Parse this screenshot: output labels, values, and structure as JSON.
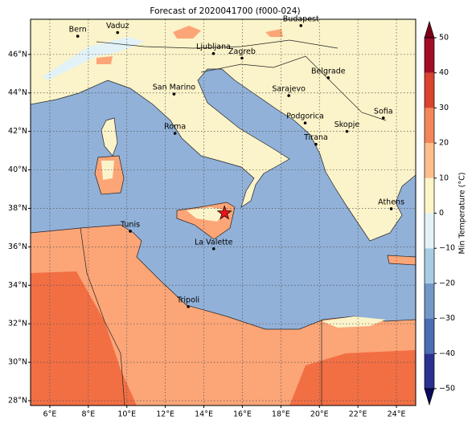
{
  "title": "Forecast of 2020041700 (f000-024)",
  "map": {
    "xlim": [
      5,
      25
    ],
    "ylim": [
      27.75,
      47.83
    ],
    "xticks": [
      {
        "value": 6,
        "label": "6°E"
      },
      {
        "value": 8,
        "label": "8°E"
      },
      {
        "value": 10,
        "label": "10°E"
      },
      {
        "value": 12,
        "label": "12°E"
      },
      {
        "value": 14,
        "label": "14°E"
      },
      {
        "value": 16,
        "label": "16°E"
      },
      {
        "value": 18,
        "label": "18°E"
      },
      {
        "value": 20,
        "label": "20°E"
      },
      {
        "value": 22,
        "label": "22°E"
      },
      {
        "value": 24,
        "label": "24°E"
      }
    ],
    "yticks": [
      {
        "value": 28,
        "label": "28°N"
      },
      {
        "value": 30,
        "label": "30°N"
      },
      {
        "value": 32,
        "label": "32°N"
      },
      {
        "value": 34,
        "label": "34°N"
      },
      {
        "value": 36,
        "label": "36°N"
      },
      {
        "value": 38,
        "label": "38°N"
      },
      {
        "value": 40,
        "label": "40°N"
      },
      {
        "value": 42,
        "label": "42°N"
      },
      {
        "value": 44,
        "label": "44°N"
      },
      {
        "value": 46,
        "label": "46°N"
      }
    ],
    "cities": [
      {
        "name": "Bern",
        "lon": 7.45,
        "lat": 46.95
      },
      {
        "name": "Vaduz",
        "lon": 9.52,
        "lat": 47.14
      },
      {
        "name": "Budapest",
        "lon": 19.04,
        "lat": 47.5
      },
      {
        "name": "Ljubljana",
        "lon": 14.5,
        "lat": 46.05
      },
      {
        "name": "Zagreb",
        "lon": 15.98,
        "lat": 45.81
      },
      {
        "name": "Belgrade",
        "lon": 20.46,
        "lat": 44.79
      },
      {
        "name": "San Marino",
        "lon": 12.45,
        "lat": 43.94
      },
      {
        "name": "Sarajevo",
        "lon": 18.41,
        "lat": 43.86
      },
      {
        "name": "Sofia",
        "lon": 23.32,
        "lat": 42.7
      },
      {
        "name": "Roma",
        "lon": 12.5,
        "lat": 41.9
      },
      {
        "name": "Podgorica",
        "lon": 19.26,
        "lat": 42.44
      },
      {
        "name": "Skopje",
        "lon": 21.43,
        "lat": 42.0
      },
      {
        "name": "Tirana",
        "lon": 19.82,
        "lat": 41.33
      },
      {
        "name": "Athens",
        "lon": 23.73,
        "lat": 37.98
      },
      {
        "name": "Tunis",
        "lon": 10.18,
        "lat": 36.81
      },
      {
        "name": "La Valette",
        "lon": 14.51,
        "lat": 35.9
      },
      {
        "name": "Tripoli",
        "lon": 13.19,
        "lat": 32.89
      }
    ],
    "marker": {
      "lon": 15.07,
      "lat": 37.75,
      "color": "#e8131b"
    }
  },
  "colorbar": {
    "label": "Min Temperature (°C)",
    "lim": [
      -50,
      50
    ],
    "ticks": [
      {
        "value": -50,
        "label": "−50"
      },
      {
        "value": -40,
        "label": "−40"
      },
      {
        "value": -30,
        "label": "−30"
      },
      {
        "value": -20,
        "label": "−20"
      },
      {
        "value": -10,
        "label": "−10"
      },
      0,
      10,
      20,
      30,
      40,
      50
    ],
    "colors": [
      "#2b3191",
      "#4a6db3",
      "#7198c7",
      "#a8cde3",
      "#e2f2f6",
      "#fdf5c8",
      "#fcbf8c",
      "#f4865b",
      "#d9432f",
      "#a30d27"
    ],
    "extend_colors": [
      "#0a0a5e",
      "#7a0019"
    ]
  }
}
